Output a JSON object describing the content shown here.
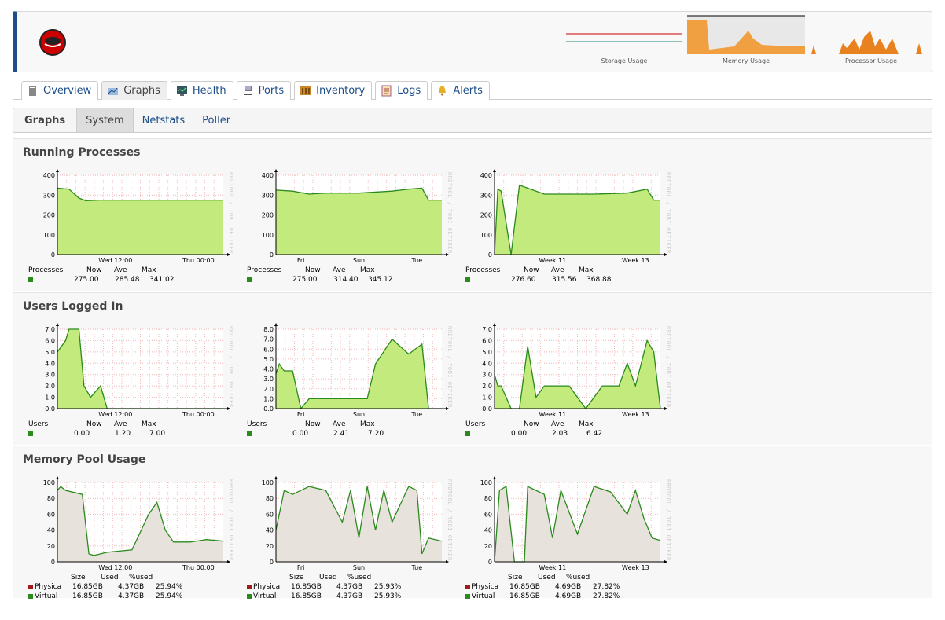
{
  "header": {
    "mini_graphs": [
      {
        "label": "Storage Usage"
      },
      {
        "label": "Memory Usage"
      },
      {
        "label": "Processor Usage"
      }
    ]
  },
  "tabs": [
    {
      "label": "Overview",
      "icon": "server-icon",
      "active": false
    },
    {
      "label": "Graphs",
      "icon": "graph-icon",
      "active": true
    },
    {
      "label": "Health",
      "icon": "monitor-icon",
      "active": false
    },
    {
      "label": "Ports",
      "icon": "network-icon",
      "active": false
    },
    {
      "label": "Inventory",
      "icon": "inventory-icon",
      "active": false
    },
    {
      "label": "Logs",
      "icon": "log-icon",
      "active": false
    },
    {
      "label": "Alerts",
      "icon": "bell-icon",
      "active": false
    }
  ],
  "subnav": {
    "title": "Graphs",
    "items": [
      {
        "label": "System",
        "active": true
      },
      {
        "label": "Netstats",
        "active": false
      },
      {
        "label": "Poller",
        "active": false
      }
    ]
  },
  "watermark": "RRDTOOL / TOBI OETIKER",
  "colors": {
    "fill_green": "#c3ea7c",
    "line_green": "#2a8a1c",
    "fill_grey": "#e7e2dc",
    "legend_red": "#a21b1b",
    "accent": "#1d4e89"
  },
  "sections": [
    {
      "title": "Running Processes",
      "graphs": [
        {
          "yticks": [
            "400",
            "300",
            "200",
            "100",
            "0"
          ],
          "xticks": [
            "Wed 12:00",
            "Thu 00:00"
          ],
          "legend_header": [
            "Processes",
            "Now",
            "Ave",
            "Max"
          ],
          "rows": [
            {
              "name": "",
              "values": [
                "275.00",
                "285.48",
                "341.02"
              ]
            }
          ]
        },
        {
          "yticks": [
            "400",
            "300",
            "200",
            "100",
            "0"
          ],
          "xticks": [
            "Fri",
            "Sun",
            "Tue"
          ],
          "legend_header": [
            "Processes",
            "Now",
            "Ave",
            "Max"
          ],
          "rows": [
            {
              "name": "",
              "values": [
                "275.00",
                "314.40",
                "345.12"
              ]
            }
          ]
        },
        {
          "yticks": [
            "400",
            "300",
            "200",
            "100",
            "0"
          ],
          "xticks": [
            "Week 11",
            "Week 13"
          ],
          "legend_header": [
            "Processes",
            "Now",
            "Ave",
            "Max"
          ],
          "rows": [
            {
              "name": "",
              "values": [
                "276.60",
                "315.56",
                "368.88"
              ]
            }
          ]
        }
      ]
    },
    {
      "title": "Users Logged In",
      "graphs": [
        {
          "yticks": [
            "7.0",
            "6.0",
            "5.0",
            "4.0",
            "3.0",
            "2.0",
            "1.0",
            "0.0"
          ],
          "xticks": [
            "Wed 12:00",
            "Thu 00:00"
          ],
          "legend_header": [
            "Users",
            "Now",
            "Ave",
            "Max"
          ],
          "rows": [
            {
              "name": "",
              "values": [
                "0.00",
                "1.20",
                "7.00"
              ]
            }
          ]
        },
        {
          "yticks": [
            "8.0",
            "7.0",
            "6.0",
            "5.0",
            "4.0",
            "3.0",
            "2.0",
            "1.0",
            "0.0"
          ],
          "xticks": [
            "Fri",
            "Sun",
            "Tue"
          ],
          "legend_header": [
            "Users",
            "Now",
            "Ave",
            "Max"
          ],
          "rows": [
            {
              "name": "",
              "values": [
                "0.00",
                "2.41",
                "7.20"
              ]
            }
          ]
        },
        {
          "yticks": [
            "7.0",
            "6.0",
            "5.0",
            "4.0",
            "3.0",
            "2.0",
            "1.0",
            "0.0"
          ],
          "xticks": [
            "Week 11",
            "Week 13"
          ],
          "legend_header": [
            "Users",
            "Now",
            "Ave",
            "Max"
          ],
          "rows": [
            {
              "name": "",
              "values": [
                "0.00",
                "2.03",
                "6.42"
              ]
            }
          ]
        }
      ]
    },
    {
      "title": "Memory Pool Usage",
      "graphs": [
        {
          "yticks": [
            "100",
            "80",
            "60",
            "40",
            "20",
            "0"
          ],
          "xticks": [
            "Wed 12:00",
            "Thu 00:00"
          ],
          "legend_header": [
            "",
            "Size",
            "Used",
            "%used"
          ],
          "rows": [
            {
              "name": "Physica",
              "values": [
                "16.85GB",
                "4.37GB",
                "25.94%"
              ]
            },
            {
              "name": "Virtual",
              "values": [
                "16.85GB",
                "4.37GB",
                "25.94%"
              ]
            }
          ]
        },
        {
          "yticks": [
            "100",
            "80",
            "60",
            "40",
            "20",
            "0"
          ],
          "xticks": [
            "Fri",
            "Sun",
            "Tue"
          ],
          "legend_header": [
            "",
            "Size",
            "Used",
            "%used"
          ],
          "rows": [
            {
              "name": "Physica",
              "values": [
                "16.85GB",
                "4.37GB",
                "25.93%"
              ]
            },
            {
              "name": "Virtual",
              "values": [
                "16.85GB",
                "4.37GB",
                "25.93%"
              ]
            }
          ]
        },
        {
          "yticks": [
            "100",
            "80",
            "60",
            "40",
            "20",
            "0"
          ],
          "xticks": [
            "Week 11",
            "Week 13"
          ],
          "legend_header": [
            "",
            "Size",
            "Used",
            "%used"
          ],
          "rows": [
            {
              "name": "Physica",
              "values": [
                "16.85GB",
                "4.69GB",
                "27.82%"
              ]
            },
            {
              "name": "Virtual",
              "values": [
                "16.85GB",
                "4.69GB",
                "27.82%"
              ]
            }
          ]
        }
      ]
    }
  ],
  "chart_data": [
    {
      "type": "area",
      "title": "Running Processes",
      "x": [
        0,
        0.07,
        0.13,
        0.17,
        0.25,
        0.5,
        0.75,
        1
      ],
      "series": [
        {
          "name": "Processes",
          "values": [
            335,
            330,
            285,
            272,
            275,
            275,
            275,
            275
          ]
        }
      ],
      "ylim": [
        0,
        400
      ],
      "xticks": [
        "Wed 12:00",
        "Thu 00:00"
      ]
    },
    {
      "type": "area",
      "title": "Running Processes",
      "x": [
        0,
        0.1,
        0.2,
        0.3,
        0.5,
        0.7,
        0.8,
        0.88,
        0.92,
        1
      ],
      "series": [
        {
          "name": "Processes",
          "values": [
            325,
            320,
            305,
            310,
            310,
            320,
            330,
            335,
            275,
            275
          ]
        }
      ],
      "ylim": [
        0,
        400
      ],
      "xticks": [
        "Fri",
        "Sun",
        "Tue"
      ]
    },
    {
      "type": "area",
      "title": "Running Processes",
      "x": [
        0,
        0.02,
        0.04,
        0.1,
        0.15,
        0.3,
        0.6,
        0.8,
        0.92,
        0.96,
        1
      ],
      "series": [
        {
          "name": "Processes",
          "values": [
            0,
            330,
            320,
            0,
            350,
            305,
            305,
            310,
            330,
            275,
            275
          ]
        }
      ],
      "ylim": [
        0,
        400
      ],
      "xticks": [
        "Week 11",
        "Week 13"
      ]
    },
    {
      "type": "area",
      "title": "Users Logged In",
      "x": [
        0,
        0.05,
        0.07,
        0.13,
        0.16,
        0.2,
        0.26,
        0.3,
        0.33,
        0.4,
        1
      ],
      "series": [
        {
          "name": "Users",
          "values": [
            5,
            6,
            7,
            7,
            2,
            1,
            2,
            0,
            0,
            0,
            0
          ]
        }
      ],
      "ylim": [
        0,
        7
      ],
      "xticks": [
        "Wed 12:00",
        "Thu 00:00"
      ]
    },
    {
      "type": "area",
      "title": "Users Logged In",
      "x": [
        0,
        0.02,
        0.05,
        0.1,
        0.15,
        0.2,
        0.35,
        0.5,
        0.55,
        0.6,
        0.7,
        0.8,
        0.88,
        0.92,
        1
      ],
      "series": [
        {
          "name": "Users",
          "values": [
            3.5,
            4.5,
            3.8,
            3.8,
            0,
            1,
            1,
            1,
            1,
            4.5,
            7,
            5.5,
            6.5,
            0,
            0
          ]
        }
      ],
      "ylim": [
        0,
        8
      ],
      "xticks": [
        "Fri",
        "Sun",
        "Tue"
      ]
    },
    {
      "type": "area",
      "title": "Users Logged In",
      "x": [
        0,
        0.02,
        0.04,
        0.1,
        0.15,
        0.2,
        0.25,
        0.3,
        0.45,
        0.55,
        0.65,
        0.75,
        0.8,
        0.85,
        0.92,
        0.96,
        1
      ],
      "series": [
        {
          "name": "Users",
          "values": [
            3,
            2,
            2,
            0,
            0,
            5.5,
            1,
            2,
            2,
            0,
            2,
            2,
            4,
            2,
            6,
            5,
            0
          ]
        }
      ],
      "ylim": [
        0,
        7
      ],
      "xticks": [
        "Week 11",
        "Week 13"
      ]
    },
    {
      "type": "area",
      "title": "Memory Pool Usage",
      "x": [
        0,
        0.02,
        0.05,
        0.15,
        0.19,
        0.22,
        0.3,
        0.45,
        0.55,
        0.6,
        0.65,
        0.7,
        0.8,
        0.9,
        1
      ],
      "series": [
        {
          "name": "Physica",
          "values": [
            90,
            95,
            90,
            85,
            10,
            8,
            12,
            15,
            60,
            75,
            40,
            25,
            25,
            28,
            26
          ]
        },
        {
          "name": "Virtual",
          "values": [
            90,
            95,
            90,
            85,
            10,
            8,
            12,
            15,
            60,
            75,
            40,
            25,
            25,
            28,
            26
          ]
        }
      ],
      "ylim": [
        0,
        100
      ],
      "xticks": [
        "Wed 12:00",
        "Thu 00:00"
      ]
    },
    {
      "type": "area",
      "title": "Memory Pool Usage",
      "x": [
        0,
        0.05,
        0.1,
        0.2,
        0.3,
        0.4,
        0.45,
        0.5,
        0.55,
        0.6,
        0.65,
        0.7,
        0.8,
        0.85,
        0.88,
        0.92,
        0.96,
        1
      ],
      "series": [
        {
          "name": "Physica",
          "values": [
            40,
            90,
            85,
            95,
            90,
            50,
            90,
            30,
            95,
            40,
            90,
            50,
            95,
            90,
            10,
            30,
            28,
            26
          ]
        },
        {
          "name": "Virtual",
          "values": [
            40,
            90,
            85,
            95,
            90,
            50,
            90,
            30,
            95,
            40,
            90,
            50,
            95,
            90,
            10,
            30,
            28,
            26
          ]
        }
      ],
      "ylim": [
        0,
        100
      ],
      "xticks": [
        "Fri",
        "Sun",
        "Tue"
      ]
    },
    {
      "type": "area",
      "title": "Memory Pool Usage",
      "x": [
        0,
        0.03,
        0.07,
        0.12,
        0.18,
        0.2,
        0.25,
        0.3,
        0.35,
        0.4,
        0.5,
        0.6,
        0.7,
        0.8,
        0.85,
        0.9,
        0.95,
        1
      ],
      "series": [
        {
          "name": "Physica",
          "values": [
            0,
            90,
            95,
            0,
            0,
            95,
            90,
            85,
            30,
            90,
            35,
            95,
            88,
            60,
            90,
            55,
            30,
            27
          ]
        },
        {
          "name": "Virtual",
          "values": [
            0,
            90,
            95,
            0,
            0,
            95,
            90,
            85,
            30,
            90,
            35,
            95,
            88,
            60,
            90,
            55,
            30,
            27
          ]
        }
      ],
      "ylim": [
        0,
        100
      ],
      "xticks": [
        "Week 11",
        "Week 13"
      ]
    }
  ]
}
